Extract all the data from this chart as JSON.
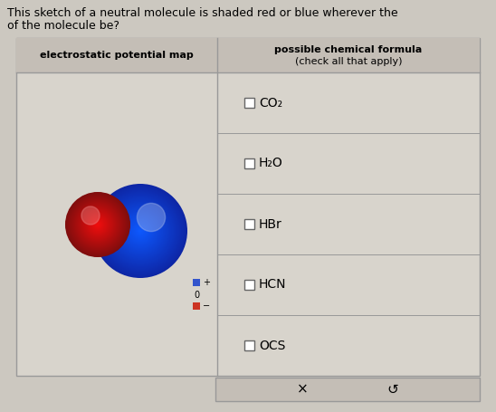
{
  "title_text1": "This sketch of a neutral molecule is shaded red or blue wherever the",
  "title_text2": "of the molecule be?",
  "col1_header": "electrostatic potential map",
  "col2_header_line1": "possible chemical formula",
  "col2_header_line2": "(check all that apply)",
  "formulas": [
    "CO₂",
    "H₂O",
    "HBr",
    "HCN",
    "OCS"
  ],
  "bottom_buttons": [
    "×",
    "↺"
  ],
  "bg_color": "#ccc8c0",
  "cell_bg": "#d8d4cc",
  "header_bg": "#c4beb6",
  "border_color": "#999999",
  "white": "#ffffff",
  "header_font_size": 8,
  "formula_font_size": 10,
  "title_font_size": 9
}
